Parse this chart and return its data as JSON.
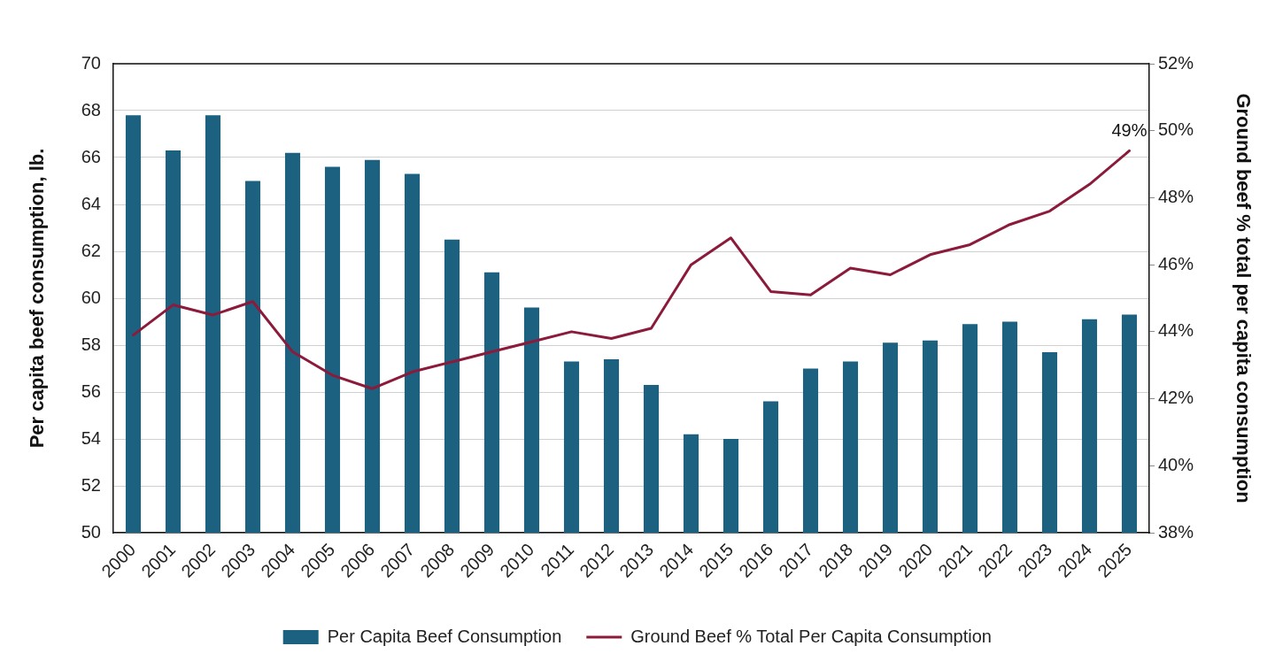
{
  "chart_data": {
    "type": "bar",
    "categories": [
      "2000",
      "2001",
      "2002",
      "2003",
      "2004",
      "2005",
      "2006",
      "2007",
      "2008",
      "2009",
      "2010",
      "2011",
      "2012",
      "2013",
      "2014",
      "2015",
      "2016",
      "2017",
      "2018",
      "2019",
      "2020",
      "2021",
      "2022",
      "2023",
      "2024",
      "2025"
    ],
    "ylabel": "Per capita beef consumption, lb.",
    "y2label": "Ground beef % total per capita consumption",
    "ylim": [
      50,
      70
    ],
    "yticks": [
      50,
      52,
      54,
      56,
      58,
      60,
      62,
      64,
      66,
      68,
      70
    ],
    "y2lim": [
      38,
      52
    ],
    "y2ticks": [
      {
        "value": 38,
        "label": "38%"
      },
      {
        "value": 40,
        "label": "40%"
      },
      {
        "value": 42,
        "label": "42%"
      },
      {
        "value": 44,
        "label": "44%"
      },
      {
        "value": 46,
        "label": "46%"
      },
      {
        "value": 48,
        "label": "48%"
      },
      {
        "value": 50,
        "label": "50%"
      },
      {
        "value": 52,
        "label": "52%"
      }
    ],
    "grid": "y",
    "legend": "bottom",
    "series": [
      {
        "name": "Per Capita Beef Consumption",
        "color": "#1d6180",
        "values": [
          67.8,
          66.3,
          67.8,
          65.0,
          66.2,
          65.6,
          65.9,
          65.3,
          62.5,
          61.1,
          59.6,
          57.3,
          57.4,
          56.3,
          54.2,
          54.0,
          55.6,
          57.0,
          57.3,
          58.1,
          58.2,
          58.9,
          59.0,
          57.7,
          59.1,
          59.3
        ]
      },
      {
        "name": "Ground Beef % Total Per Capita Consumption",
        "type": "line",
        "axis": "y2",
        "color": "#8b1a3b",
        "values": [
          43.9,
          44.8,
          44.5,
          44.9,
          43.4,
          42.7,
          42.3,
          42.8,
          43.1,
          43.4,
          43.7,
          44.0,
          43.8,
          44.1,
          46.0,
          46.8,
          45.2,
          45.1,
          45.9,
          45.7,
          46.3,
          46.6,
          47.2,
          47.6,
          48.4,
          49.4
        ],
        "value_labels": [
          null,
          null,
          null,
          null,
          null,
          null,
          null,
          null,
          null,
          null,
          null,
          null,
          null,
          null,
          null,
          null,
          null,
          null,
          null,
          null,
          null,
          null,
          null,
          null,
          null,
          "49%"
        ]
      }
    ]
  }
}
